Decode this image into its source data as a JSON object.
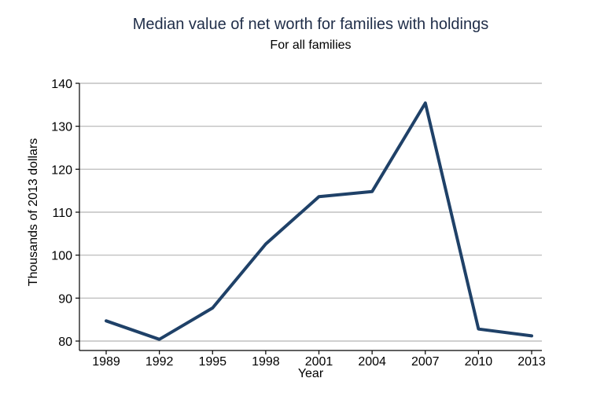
{
  "chart_data": {
    "type": "line",
    "title": "Median value of net worth for families with holdings",
    "subtitle": "For all families",
    "xlabel": "Year",
    "ylabel": "Thousands of 2013 dollars",
    "x": [
      "1989",
      "1992",
      "1995",
      "1998",
      "2001",
      "2004",
      "2007",
      "2010",
      "2013"
    ],
    "series": [
      {
        "values": [
          84.7,
          80.4,
          87.7,
          102.6,
          113.6,
          114.8,
          135.4,
          82.8,
          81.2
        ],
        "color": "#1f4168"
      }
    ],
    "ylim": [
      80,
      140
    ],
    "yticks": [
      80,
      90,
      100,
      110,
      120,
      130,
      140
    ],
    "grid": true
  }
}
